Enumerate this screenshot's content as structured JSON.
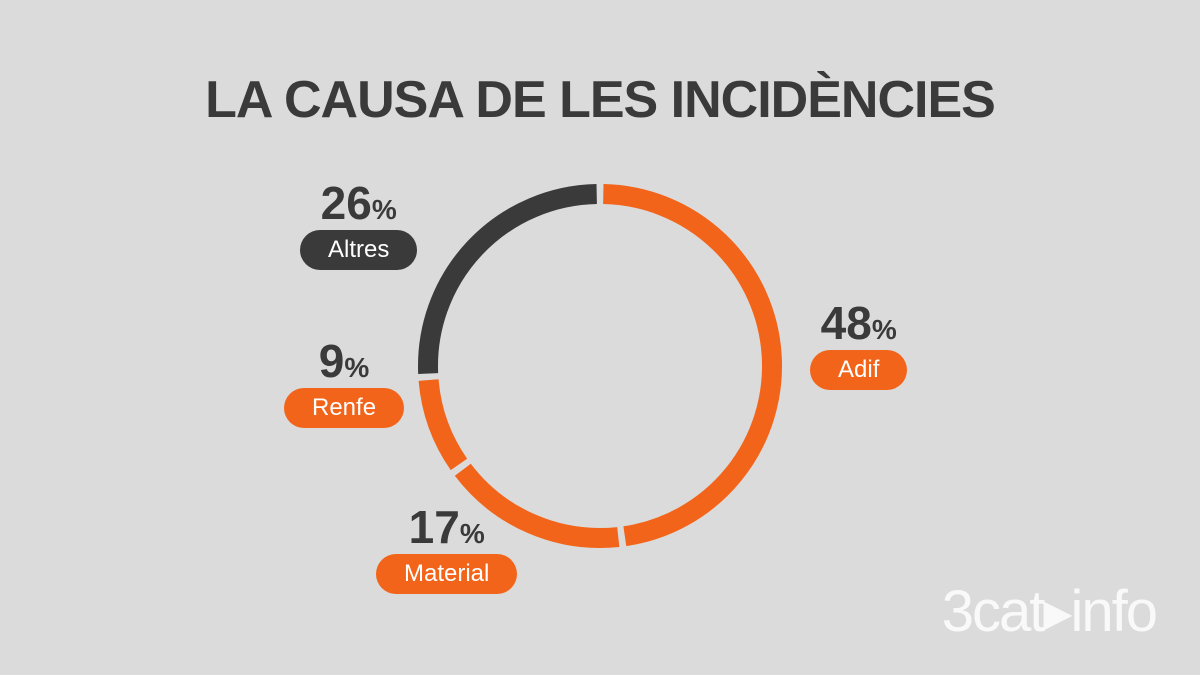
{
  "chart_data": {
    "type": "pie",
    "variant": "donut",
    "title": "LA CAUSA DE LES INCIDÈNCIES",
    "slices": [
      {
        "label": "Adif",
        "value": 48,
        "color": "#f26419"
      },
      {
        "label": "Material",
        "value": 17,
        "color": "#f26419"
      },
      {
        "label": "Renfe",
        "value": 9,
        "color": "#f26419"
      },
      {
        "label": "Altres",
        "value": 26,
        "color": "#3a3a3a"
      }
    ],
    "unit": "%"
  },
  "brand": {
    "logo_text": "3cat▸info"
  },
  "colors": {
    "background": "#dcdbdb",
    "accent": "#f26419",
    "dark": "#3a3a3a"
  }
}
